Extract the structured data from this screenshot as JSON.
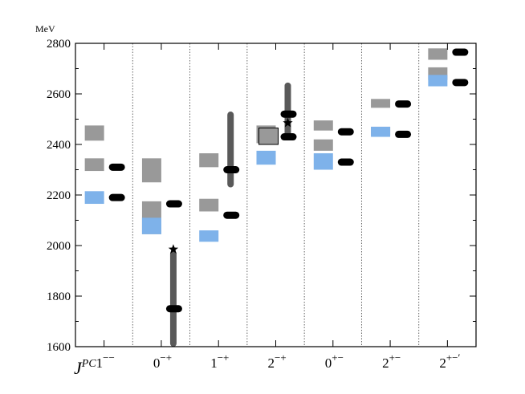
{
  "chart_data": {
    "type": "spectrum",
    "ylabel": "MeV",
    "x_axis_symbol": "J",
    "x_axis_symbol_sup": "PC",
    "ylim": [
      1600,
      2800
    ],
    "yticks": [
      1600,
      1800,
      2000,
      2200,
      2400,
      2600,
      2800
    ],
    "categories": [
      {
        "base": "1",
        "sup": "−−"
      },
      {
        "base": "0",
        "sup": "−+"
      },
      {
        "base": "1",
        "sup": "−+"
      },
      {
        "base": "2",
        "sup": "−+"
      },
      {
        "base": "0",
        "sup": "+−"
      },
      {
        "base": "2",
        "sup": "+−"
      },
      {
        "base": "2",
        "sup": "+−′"
      }
    ],
    "colors": {
      "gray_box": "#999999",
      "blue_box": "#7eb2ea",
      "dark_bar": "#595959",
      "marker": "#000000"
    },
    "gray_boxes": [
      {
        "cat": 0,
        "low": 2415,
        "high": 2475
      },
      {
        "cat": 0,
        "low": 2295,
        "high": 2345
      },
      {
        "cat": 1,
        "low": 2250,
        "high": 2345
      },
      {
        "cat": 1,
        "low": 2045,
        "high": 2175
      },
      {
        "cat": 2,
        "low": 2310,
        "high": 2365
      },
      {
        "cat": 2,
        "low": 2135,
        "high": 2185
      },
      {
        "cat": 3,
        "low": 2405,
        "high": 2475
      },
      {
        "cat": 4,
        "low": 2455,
        "high": 2495
      },
      {
        "cat": 4,
        "low": 2375,
        "high": 2420
      },
      {
        "cat": 5,
        "low": 2545,
        "high": 2580
      },
      {
        "cat": 5,
        "low": 2435,
        "high": 2470
      },
      {
        "cat": 6,
        "low": 2735,
        "high": 2780
      },
      {
        "cat": 6,
        "low": 2655,
        "high": 2705
      }
    ],
    "outlined_boxes": [
      {
        "cat": 3,
        "low": 2400,
        "high": 2465
      }
    ],
    "blue_boxes": [
      {
        "cat": 0,
        "low": 2165,
        "high": 2215
      },
      {
        "cat": 1,
        "low": 2045,
        "high": 2110
      },
      {
        "cat": 2,
        "low": 2015,
        "high": 2060
      },
      {
        "cat": 3,
        "low": 2320,
        "high": 2375
      },
      {
        "cat": 4,
        "low": 2300,
        "high": 2365
      },
      {
        "cat": 5,
        "low": 2430,
        "high": 2470
      },
      {
        "cat": 6,
        "low": 2630,
        "high": 2675
      }
    ],
    "dark_bars": [
      {
        "cat": 1,
        "low": 1600,
        "high": 1980
      },
      {
        "cat": 2,
        "low": 2230,
        "high": 2530
      },
      {
        "cat": 3,
        "low": 2420,
        "high": 2645
      }
    ],
    "pill_markers": [
      {
        "cat": 0,
        "value": 2310
      },
      {
        "cat": 0,
        "value": 2190
      },
      {
        "cat": 1,
        "value": 2165
      },
      {
        "cat": 1,
        "value": 1750
      },
      {
        "cat": 2,
        "value": 2300
      },
      {
        "cat": 2,
        "value": 2120
      },
      {
        "cat": 3,
        "value": 2520
      },
      {
        "cat": 3,
        "value": 2430
      },
      {
        "cat": 4,
        "value": 2450
      },
      {
        "cat": 4,
        "value": 2330
      },
      {
        "cat": 5,
        "value": 2560
      },
      {
        "cat": 5,
        "value": 2440
      },
      {
        "cat": 6,
        "value": 2765
      },
      {
        "cat": 6,
        "value": 2645
      }
    ],
    "star_markers": [
      {
        "cat": 1,
        "value": 1985
      },
      {
        "cat": 3,
        "value": 2485
      }
    ]
  }
}
